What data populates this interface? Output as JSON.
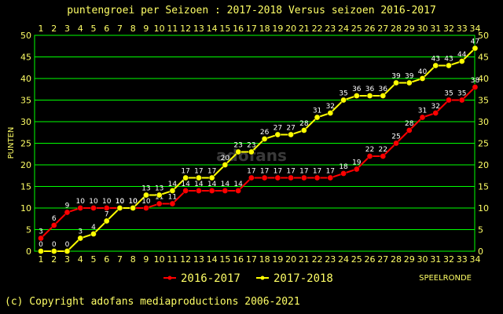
{
  "chart_data": {
    "type": "line",
    "title": "puntengroei per Seizoen : 2017-2018 Versus seizoen 2016-2017",
    "ylabel": "PUNTEN",
    "xlabel": "SPEELRONDE",
    "ylim": [
      0,
      50
    ],
    "yticks": [
      0,
      5,
      10,
      15,
      20,
      25,
      30,
      35,
      40,
      45,
      50
    ],
    "x": [
      1,
      2,
      3,
      4,
      5,
      6,
      7,
      8,
      9,
      10,
      11,
      12,
      13,
      14,
      15,
      16,
      17,
      18,
      19,
      20,
      21,
      22,
      23,
      24,
      25,
      26,
      27,
      28,
      29,
      30,
      31,
      32,
      33,
      34
    ],
    "series": [
      {
        "name": "2016-2017",
        "color": "#ff0000",
        "values": [
          3,
          6,
          9,
          10,
          10,
          10,
          10,
          10,
          10,
          11,
          11,
          14,
          14,
          14,
          14,
          14,
          17,
          17,
          17,
          17,
          17,
          17,
          17,
          18,
          19,
          22,
          22,
          25,
          28,
          31,
          32,
          35,
          35,
          38
        ]
      },
      {
        "name": "2017-2018",
        "color": "#ffff00",
        "values": [
          0,
          0,
          0,
          3,
          4,
          7,
          10,
          10,
          13,
          13,
          14,
          17,
          17,
          17,
          20,
          23,
          23,
          26,
          27,
          27,
          28,
          31,
          32,
          35,
          36,
          36,
          36,
          39,
          39,
          40,
          43,
          43,
          44,
          47
        ]
      }
    ],
    "grid": true,
    "legend_position": "bottom"
  },
  "watermark": "adofans",
  "footer": {
    "copyright": "(c) Copyright adofans mediaproductions 2006-2021"
  }
}
